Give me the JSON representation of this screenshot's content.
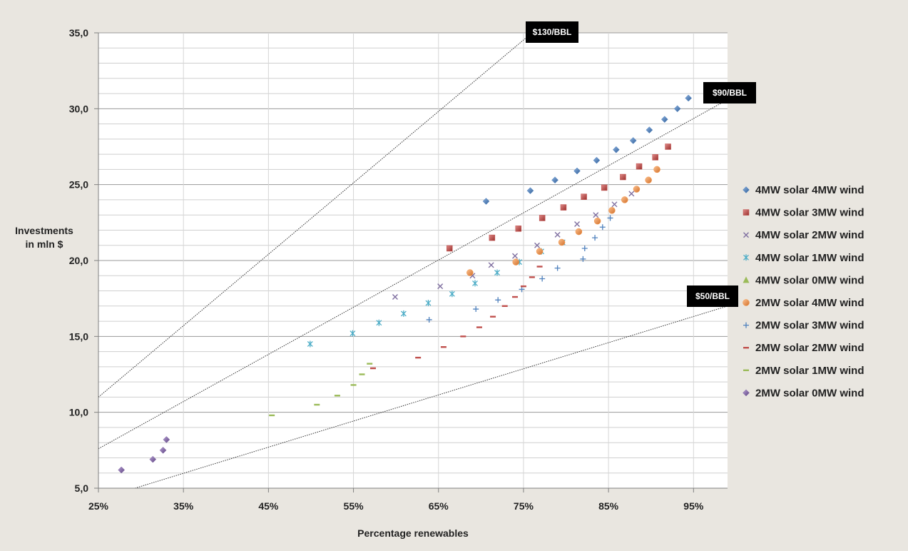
{
  "chart_data": {
    "type": "scatter",
    "xlabel": "Percentage renewables",
    "ylabel": [
      "Investments",
      "in mln $"
    ],
    "xlim": [
      0.25,
      0.99
    ],
    "ylim": [
      5,
      35
    ],
    "x_ticks": [
      0.25,
      0.35,
      0.45,
      0.55,
      0.65,
      0.75,
      0.85,
      0.95
    ],
    "x_tick_labels": [
      "25%",
      "35%",
      "45%",
      "55%",
      "65%",
      "75%",
      "85%",
      "95%"
    ],
    "y_ticks": [
      5,
      10,
      15,
      20,
      25,
      30,
      35
    ],
    "y_tick_labels": [
      "5,0",
      "10,0",
      "15,0",
      "20,0",
      "25,0",
      "30,0",
      "35,0"
    ],
    "grid": "horizontal",
    "legend_position": "right",
    "reference_lines": [
      {
        "label": "$130/BBL",
        "x": [
          0.25,
          0.76
        ],
        "y": [
          11.0,
          35.0
        ]
      },
      {
        "label": "$90/BBL",
        "x": [
          0.25,
          0.99
        ],
        "y": [
          7.6,
          30.6
        ]
      },
      {
        "label": "$50/BBL",
        "x": [
          0.293,
          0.99
        ],
        "y": [
          5.0,
          17.0
        ]
      }
    ],
    "series": [
      {
        "name": "4MW solar 4MW wind",
        "color": "#4f81bd",
        "marker": "diamond",
        "points": [
          [
            0.706,
            23.9
          ],
          [
            0.758,
            24.6
          ],
          [
            0.787,
            25.3
          ],
          [
            0.813,
            25.9
          ],
          [
            0.836,
            26.6
          ],
          [
            0.859,
            27.3
          ],
          [
            0.879,
            27.9
          ],
          [
            0.898,
            28.6
          ],
          [
            0.916,
            29.3
          ],
          [
            0.931,
            30.0
          ],
          [
            0.944,
            30.7
          ]
        ]
      },
      {
        "name": "4MW solar 3MW wind",
        "color": "#c0504d",
        "marker": "square",
        "points": [
          [
            0.663,
            20.8
          ],
          [
            0.713,
            21.5
          ],
          [
            0.744,
            22.1
          ],
          [
            0.772,
            22.8
          ],
          [
            0.797,
            23.5
          ],
          [
            0.821,
            24.2
          ],
          [
            0.845,
            24.8
          ],
          [
            0.867,
            25.5
          ],
          [
            0.886,
            26.2
          ],
          [
            0.905,
            26.8
          ],
          [
            0.92,
            27.5
          ]
        ]
      },
      {
        "name": "4MW solar 2MW wind",
        "color": "#7f6fa0",
        "marker": "x",
        "points": [
          [
            0.599,
            17.6
          ],
          [
            0.652,
            18.3
          ],
          [
            0.69,
            19.0
          ],
          [
            0.712,
            19.7
          ],
          [
            0.74,
            20.3
          ],
          [
            0.766,
            21.0
          ],
          [
            0.79,
            21.7
          ],
          [
            0.813,
            22.4
          ],
          [
            0.835,
            23.0
          ],
          [
            0.857,
            23.7
          ],
          [
            0.877,
            24.4
          ]
        ]
      },
      {
        "name": "4MW solar 1MW wind",
        "color": "#4bacc6",
        "marker": "star",
        "points": [
          [
            0.499,
            14.5
          ],
          [
            0.549,
            15.2
          ],
          [
            0.58,
            15.9
          ],
          [
            0.609,
            16.5
          ],
          [
            0.638,
            17.2
          ],
          [
            0.666,
            17.8
          ],
          [
            0.693,
            18.5
          ],
          [
            0.719,
            19.2
          ],
          [
            0.745,
            19.9
          ],
          [
            0.771,
            20.6
          ],
          [
            0.796,
            21.2
          ]
        ]
      },
      {
        "name": "4MW solar 0MW wind",
        "color": "#9bbb59",
        "marker": "triangle",
        "points": []
      },
      {
        "name": "2MW solar 4MW wind",
        "color": "#f79646",
        "marker": "circle",
        "points": [
          [
            0.687,
            19.2
          ],
          [
            0.741,
            19.9
          ],
          [
            0.769,
            20.6
          ],
          [
            0.795,
            21.2
          ],
          [
            0.815,
            21.9
          ],
          [
            0.837,
            22.6
          ],
          [
            0.854,
            23.3
          ],
          [
            0.869,
            24.0
          ],
          [
            0.883,
            24.7
          ],
          [
            0.897,
            25.3
          ],
          [
            0.907,
            26.0
          ]
        ]
      },
      {
        "name": "2MW solar 3MW wind",
        "color": "#4f81bd",
        "marker": "plus",
        "points": [
          [
            0.639,
            16.1
          ],
          [
            0.694,
            16.8
          ],
          [
            0.72,
            17.4
          ],
          [
            0.748,
            18.1
          ],
          [
            0.772,
            18.8
          ],
          [
            0.79,
            19.5
          ],
          [
            0.82,
            20.1
          ],
          [
            0.822,
            20.8
          ],
          [
            0.834,
            21.5
          ],
          [
            0.843,
            22.2
          ],
          [
            0.852,
            22.8
          ]
        ]
      },
      {
        "name": "2MW solar 2MW wind",
        "color": "#c0504d",
        "marker": "dash",
        "points": [
          [
            0.573,
            12.9
          ],
          [
            0.626,
            13.6
          ],
          [
            0.656,
            14.3
          ],
          [
            0.679,
            15.0
          ],
          [
            0.698,
            15.6
          ],
          [
            0.714,
            16.3
          ],
          [
            0.728,
            17.0
          ],
          [
            0.74,
            17.6
          ],
          [
            0.75,
            18.3
          ],
          [
            0.76,
            18.9
          ],
          [
            0.769,
            19.6
          ]
        ]
      },
      {
        "name": "2MW solar 1MW wind",
        "color": "#9bbb59",
        "marker": "dash",
        "points": [
          [
            0.454,
            9.8
          ],
          [
            0.507,
            10.5
          ],
          [
            0.531,
            11.1
          ],
          [
            0.55,
            11.8
          ],
          [
            0.56,
            12.5
          ],
          [
            0.569,
            13.2
          ]
        ]
      },
      {
        "name": "2MW solar 0MW wind",
        "color": "#8064a2",
        "marker": "diamond",
        "points": [
          [
            0.277,
            6.2
          ],
          [
            0.314,
            6.9
          ],
          [
            0.326,
            7.5
          ],
          [
            0.33,
            8.2
          ]
        ]
      }
    ]
  }
}
